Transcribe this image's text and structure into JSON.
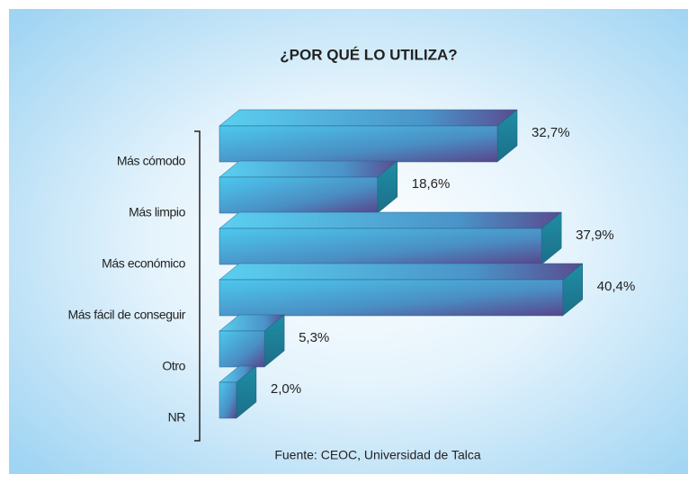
{
  "chart_data": {
    "type": "bar3d",
    "orientation": "horizontal",
    "title": "¿POR QUÉ LO UTILIZA?",
    "categories": [
      "Más cómodo",
      "Más limpio",
      "Más económico",
      "Más fácil de conseguir",
      "Otro",
      "NR"
    ],
    "values": [
      32.7,
      18.6,
      37.9,
      40.4,
      5.3,
      2.0
    ],
    "value_labels": [
      "32,7%",
      "18,6%",
      "37,9%",
      "40,4%",
      "5,3%",
      "2,0%"
    ],
    "source": "Fuente: CEOC, Universidad de Talca"
  }
}
